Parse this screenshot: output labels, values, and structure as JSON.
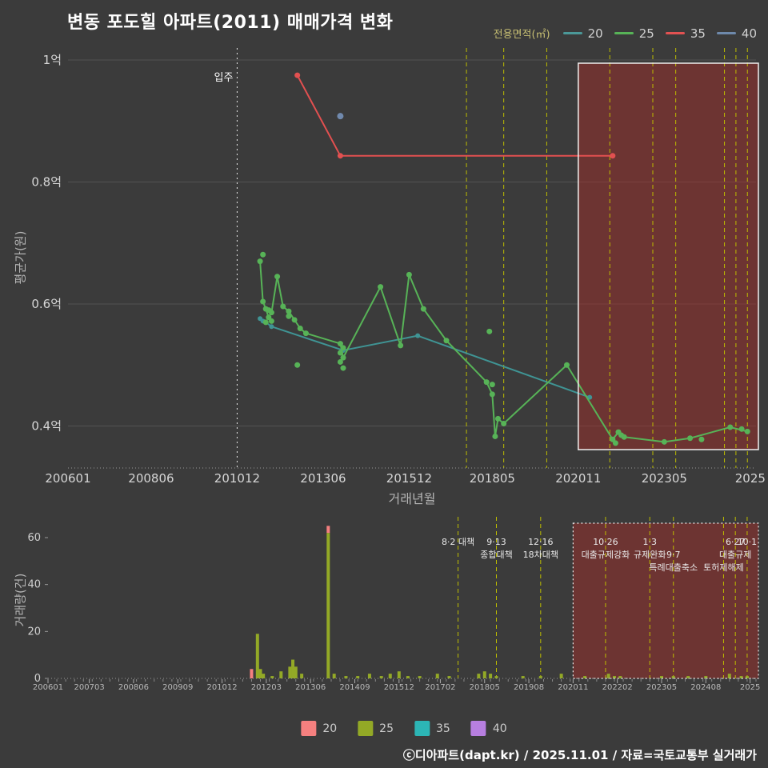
{
  "title": "변동 포도힐 아파트(2011) 매매가격 변화",
  "legend_top": {
    "label": "전용면적(㎡)",
    "items": [
      {
        "label": "20",
        "color": "#4b9898"
      },
      {
        "label": "25",
        "color": "#57b357"
      },
      {
        "label": "35",
        "color": "#e25252"
      },
      {
        "label": "40",
        "color": "#6e89ab"
      }
    ]
  },
  "legend_bottom": {
    "items": [
      {
        "label": "20",
        "color": "#f5807f"
      },
      {
        "label": "25",
        "color": "#93a926"
      },
      {
        "label": "35",
        "color": "#2cb5b5"
      },
      {
        "label": "40",
        "color": "#b77fe0"
      }
    ]
  },
  "footer": "ⓒ디아파트(dapt.kr) / 2025.11.01 / 자료=국토교통부 실거래가",
  "chart_data": [
    {
      "type": "line",
      "xlabel": "거래년월",
      "ylabel": "평균가(원)",
      "y_unit": "억",
      "x_ticks": [
        {
          "m": "2006-01",
          "label": "200601"
        },
        {
          "m": "2008-06",
          "label": "200806"
        },
        {
          "m": "2010-12",
          "label": "201012"
        },
        {
          "m": "2013-06",
          "label": "201306"
        },
        {
          "m": "2015-12",
          "label": "201512"
        },
        {
          "m": "2018-05",
          "label": "201805"
        },
        {
          "m": "2020-11",
          "label": "202011"
        },
        {
          "m": "2023-05",
          "label": "202305"
        },
        {
          "m": "2025-11",
          "label": "2025"
        }
      ],
      "y_ticks": [
        {
          "v": 1.0,
          "label": "1억"
        },
        {
          "v": 0.8,
          "label": "0.8억"
        },
        {
          "v": 0.6,
          "label": "0.6억"
        },
        {
          "v": 0.4,
          "label": "0.4억"
        }
      ],
      "movein": {
        "m": "2010-12",
        "label": "입주"
      },
      "highlight_region": {
        "from": "2020-11",
        "to": "2025-12"
      },
      "policy_lines": [
        "2017-08",
        "2018-09",
        "2019-12",
        "2021-10",
        "2023-01",
        "2023-09",
        "2025-02",
        "2025-06",
        "2025-10"
      ],
      "series": [
        {
          "name": "20",
          "color": "#3f9494",
          "line": [
            [
              "2011-08",
              0.576
            ],
            [
              "2011-10",
              0.57
            ],
            [
              "2011-12",
              0.563
            ],
            [
              "2014-01",
              0.524
            ],
            [
              "2016-03",
              0.548
            ],
            [
              "2021-03",
              0.447
            ]
          ],
          "dots": [
            [
              "2011-09",
              0.572
            ]
          ]
        },
        {
          "name": "25",
          "color": "#57b357",
          "line": [
            [
              "2011-08",
              0.67
            ],
            [
              "2011-09",
              0.604
            ],
            [
              "2011-10",
              0.592
            ],
            [
              "2011-11",
              0.578
            ],
            [
              "2011-12",
              0.586
            ],
            [
              "2012-02",
              0.645
            ],
            [
              "2012-04",
              0.596
            ],
            [
              "2012-06",
              0.588
            ],
            [
              "2012-08",
              0.574
            ],
            [
              "2012-10",
              0.56
            ],
            [
              "2012-12",
              0.552
            ],
            [
              "2013-12",
              0.535
            ],
            [
              "2014-01",
              0.512
            ],
            [
              "2015-02",
              0.628
            ],
            [
              "2015-09",
              0.532
            ],
            [
              "2015-12",
              0.648
            ],
            [
              "2016-05",
              0.592
            ],
            [
              "2017-01",
              0.54
            ],
            [
              "2018-03",
              0.472
            ],
            [
              "2018-05",
              0.452
            ],
            [
              "2018-06",
              0.383
            ],
            [
              "2018-07",
              0.412
            ],
            [
              "2018-09",
              0.404
            ],
            [
              "2020-07",
              0.5
            ],
            [
              "2021-11",
              0.378
            ],
            [
              "2022-01",
              0.39
            ],
            [
              "2022-03",
              0.382
            ],
            [
              "2023-05",
              0.374
            ],
            [
              "2024-02",
              0.38
            ],
            [
              "2025-04",
              0.398
            ],
            [
              "2025-10",
              0.391
            ]
          ],
          "dots": [
            [
              "2011-09",
              0.681
            ],
            [
              "2011-10",
              0.57
            ],
            [
              "2011-11",
              0.59
            ],
            [
              "2011-12",
              0.572
            ],
            [
              "2012-06",
              0.58
            ],
            [
              "2012-09",
              0.5
            ],
            [
              "2013-12",
              0.52
            ],
            [
              "2013-12",
              0.505
            ],
            [
              "2014-01",
              0.528
            ],
            [
              "2014-01",
              0.495
            ],
            [
              "2018-04",
              0.555
            ],
            [
              "2018-05",
              0.468
            ],
            [
              "2021-12",
              0.372
            ],
            [
              "2022-02",
              0.385
            ],
            [
              "2024-06",
              0.378
            ],
            [
              "2025-08",
              0.395
            ]
          ]
        },
        {
          "name": "35",
          "color": "#e25050",
          "line": [
            [
              "2012-09",
              0.975
            ],
            [
              "2013-12",
              0.843
            ],
            [
              "2021-11",
              0.843
            ]
          ],
          "dots": []
        },
        {
          "name": "40",
          "color": "#7089ad",
          "line": [],
          "dots": [
            [
              "2013-12",
              0.908
            ]
          ]
        }
      ]
    },
    {
      "type": "bar",
      "ylabel": "거래량(건)",
      "y_ticks": [
        0,
        20,
        40,
        60
      ],
      "x_ticks": [
        {
          "m": "2006-01",
          "label": "200601"
        },
        {
          "m": "2007-03",
          "label": "200703"
        },
        {
          "m": "2008-06",
          "label": "200806"
        },
        {
          "m": "2009-09",
          "label": "200909"
        },
        {
          "m": "2010-12",
          "label": "201012"
        },
        {
          "m": "2012-03",
          "label": "201203"
        },
        {
          "m": "2013-06",
          "label": "201306"
        },
        {
          "m": "2014-09",
          "label": "201409"
        },
        {
          "m": "2015-12",
          "label": "201512"
        },
        {
          "m": "2017-02",
          "label": "201702"
        },
        {
          "m": "2018-05",
          "label": "201805"
        },
        {
          "m": "2019-08",
          "label": "201908"
        },
        {
          "m": "2020-11",
          "label": "202011"
        },
        {
          "m": "2022-02",
          "label": "202202"
        },
        {
          "m": "2023-05",
          "label": "202305"
        },
        {
          "m": "2024-08",
          "label": "202408"
        },
        {
          "m": "2025-11",
          "label": "2025"
        }
      ],
      "highlight_region": {
        "from": "2020-11",
        "to": "2025-12"
      },
      "bar_colors": {
        "20": "#f5807f",
        "25": "#93a926",
        "35": "#2cb5b5",
        "40": "#b77fe0"
      },
      "bars": [
        {
          "m": "2011-10",
          "segments": [
            {
              "size": "20",
              "count": 4
            }
          ]
        },
        {
          "m": "2011-12",
          "segments": [
            {
              "size": "25",
              "count": 19
            }
          ]
        },
        {
          "m": "2012-01",
          "segments": [
            {
              "size": "25",
              "count": 4
            }
          ]
        },
        {
          "m": "2012-02",
          "segments": [
            {
              "size": "25",
              "count": 2
            }
          ]
        },
        {
          "m": "2012-05",
          "segments": [
            {
              "size": "25",
              "count": 1
            }
          ]
        },
        {
          "m": "2012-08",
          "segments": [
            {
              "size": "25",
              "count": 3
            }
          ]
        },
        {
          "m": "2012-11",
          "segments": [
            {
              "size": "25",
              "count": 5
            }
          ]
        },
        {
          "m": "2012-12",
          "segments": [
            {
              "size": "25",
              "count": 8
            }
          ]
        },
        {
          "m": "2013-01",
          "segments": [
            {
              "size": "25",
              "count": 5
            }
          ]
        },
        {
          "m": "2013-03",
          "segments": [
            {
              "size": "25",
              "count": 2
            }
          ]
        },
        {
          "m": "2013-12",
          "segments": [
            {
              "size": "25",
              "count": 62
            },
            {
              "size": "20",
              "count": 3
            }
          ]
        },
        {
          "m": "2014-02",
          "segments": [
            {
              "size": "25",
              "count": 2
            }
          ]
        },
        {
          "m": "2014-06",
          "segments": [
            {
              "size": "25",
              "count": 1
            }
          ]
        },
        {
          "m": "2014-10",
          "segments": [
            {
              "size": "25",
              "count": 1
            }
          ]
        },
        {
          "m": "2015-02",
          "segments": [
            {
              "size": "25",
              "count": 2
            }
          ]
        },
        {
          "m": "2015-06",
          "segments": [
            {
              "size": "25",
              "count": 1
            }
          ]
        },
        {
          "m": "2015-09",
          "segments": [
            {
              "size": "25",
              "count": 2
            }
          ]
        },
        {
          "m": "2015-12",
          "segments": [
            {
              "size": "25",
              "count": 3
            }
          ]
        },
        {
          "m": "2016-03",
          "segments": [
            {
              "size": "25",
              "count": 1
            }
          ]
        },
        {
          "m": "2016-07",
          "segments": [
            {
              "size": "25",
              "count": 1
            }
          ]
        },
        {
          "m": "2017-01",
          "segments": [
            {
              "size": "25",
              "count": 2
            }
          ]
        },
        {
          "m": "2017-05",
          "segments": [
            {
              "size": "25",
              "count": 1
            }
          ]
        },
        {
          "m": "2018-03",
          "segments": [
            {
              "size": "25",
              "count": 2
            }
          ]
        },
        {
          "m": "2018-05",
          "segments": [
            {
              "size": "25",
              "count": 3
            }
          ]
        },
        {
          "m": "2018-07",
          "segments": [
            {
              "size": "25",
              "count": 2
            }
          ]
        },
        {
          "m": "2018-09",
          "segments": [
            {
              "size": "25",
              "count": 1
            }
          ]
        },
        {
          "m": "2019-06",
          "segments": [
            {
              "size": "25",
              "count": 1
            }
          ]
        },
        {
          "m": "2019-12",
          "segments": [
            {
              "size": "25",
              "count": 1
            }
          ]
        },
        {
          "m": "2020-07",
          "segments": [
            {
              "size": "25",
              "count": 2
            }
          ]
        },
        {
          "m": "2021-03",
          "segments": [
            {
              "size": "25",
              "count": 1
            }
          ]
        },
        {
          "m": "2021-11",
          "segments": [
            {
              "size": "25",
              "count": 2
            }
          ]
        },
        {
          "m": "2022-01",
          "segments": [
            {
              "size": "25",
              "count": 1
            }
          ]
        },
        {
          "m": "2022-03",
          "segments": [
            {
              "size": "25",
              "count": 1
            }
          ]
        },
        {
          "m": "2023-05",
          "segments": [
            {
              "size": "25",
              "count": 1
            }
          ]
        },
        {
          "m": "2023-09",
          "segments": [
            {
              "size": "25",
              "count": 1
            }
          ]
        },
        {
          "m": "2024-02",
          "segments": [
            {
              "size": "25",
              "count": 1
            }
          ]
        },
        {
          "m": "2024-08",
          "segments": [
            {
              "size": "25",
              "count": 1
            }
          ]
        },
        {
          "m": "2025-04",
          "segments": [
            {
              "size": "25",
              "count": 2
            }
          ]
        },
        {
          "m": "2025-08",
          "segments": [
            {
              "size": "25",
              "count": 1
            }
          ]
        },
        {
          "m": "2025-10",
          "segments": [
            {
              "size": "25",
              "count": 1
            }
          ]
        }
      ],
      "policies": [
        {
          "m": "2017-08",
          "labels": [
            {
              "text": "8·2 대책",
              "row": 0
            }
          ]
        },
        {
          "m": "2018-09",
          "labels": [
            {
              "text": "9·13",
              "row": 0
            },
            {
              "text": "종합대책",
              "row": 1
            }
          ]
        },
        {
          "m": "2019-12",
          "labels": [
            {
              "text": "12·16",
              "row": 0
            },
            {
              "text": "18차대책",
              "row": 1
            }
          ]
        },
        {
          "m": "2021-10",
          "labels": [
            {
              "text": "10·26",
              "row": 0
            },
            {
              "text": "대출규제강화",
              "row": 1
            }
          ]
        },
        {
          "m": "2023-01",
          "labels": [
            {
              "text": "1·3",
              "row": 0
            },
            {
              "text": "규제완화",
              "row": 1
            }
          ]
        },
        {
          "m": "2023-09",
          "labels": [
            {
              "text": "9·7",
              "row": 1
            },
            {
              "text": "특례대출축소",
              "row": 2
            }
          ]
        },
        {
          "m": "2025-02",
          "labels": [
            {
              "text": "토허제해제",
              "row": 2
            }
          ]
        },
        {
          "m": "2025-06",
          "labels": [
            {
              "text": "6·27",
              "row": 0
            },
            {
              "text": "대출규제",
              "row": 1
            }
          ]
        },
        {
          "m": "2025-10",
          "labels": [
            {
              "text": "10·1",
              "row": 0
            }
          ]
        }
      ]
    }
  ]
}
